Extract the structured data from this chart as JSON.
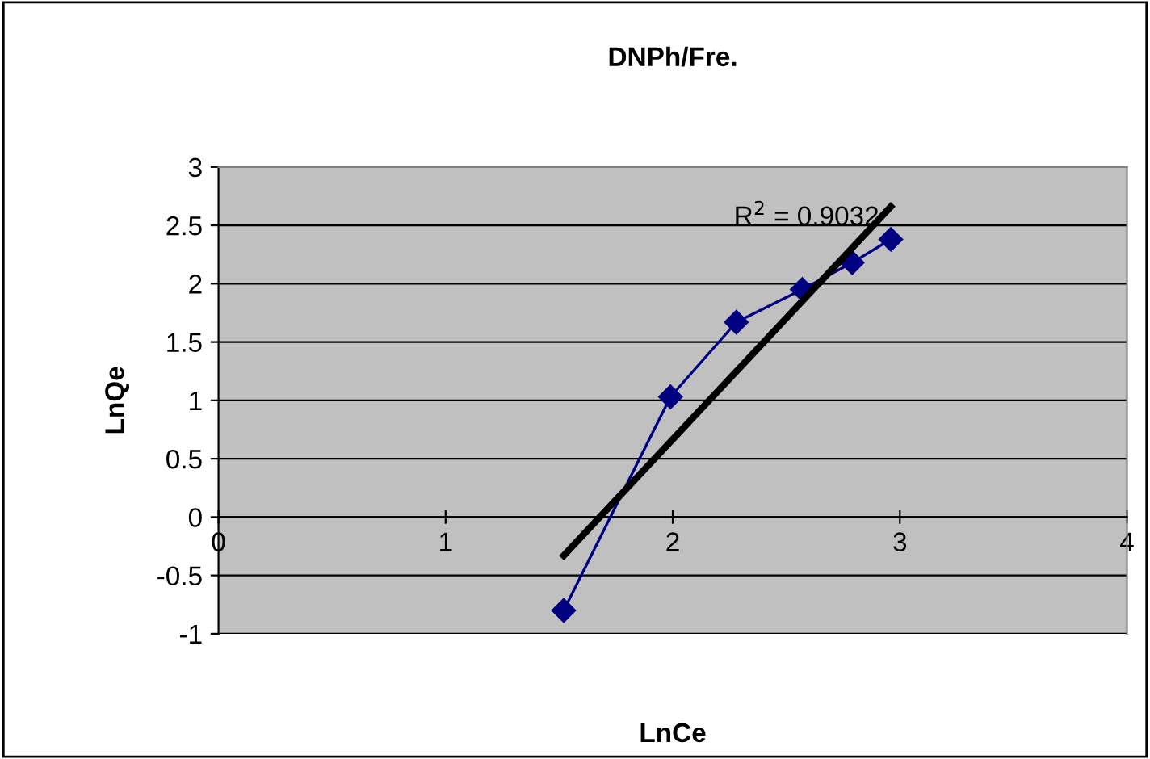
{
  "chart_data": {
    "type": "line",
    "title": "DNPh/Fre.",
    "xlabel": "LnCe",
    "ylabel": "LnQe",
    "xlim": [
      0,
      4
    ],
    "ylim": [
      -1,
      3
    ],
    "xticks": [
      0,
      1,
      2,
      3,
      4
    ],
    "yticks": [
      -1,
      -0.5,
      0,
      0.5,
      1,
      1.5,
      2,
      2.5,
      3
    ],
    "grid": "y",
    "marker": "diamond",
    "line_style": "solid",
    "annotations": [
      "R$^{2}$ = 0.9032"
    ],
    "series": [
      {
        "color": "#000080",
        "x": [
          1.52,
          1.99,
          2.28,
          2.57,
          2.79,
          2.96
        ],
        "values": [
          -0.8,
          1.03,
          1.67,
          1.95,
          2.18,
          2.38
        ]
      },
      {
        "type": "line",
        "color": "#000000",
        "marker": "none",
        "x": [
          1.52,
          2.96
        ],
        "values": [
          -0.33,
          2.66
        ]
      }
    ]
  }
}
